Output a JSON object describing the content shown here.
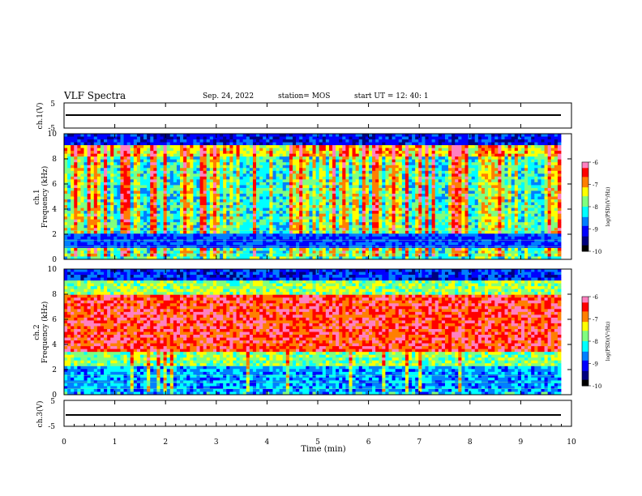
{
  "header": {
    "title": "VLF Spectra",
    "date": "Sep. 24, 2022",
    "station": "station= MOS",
    "start": "start  UT  =    12: 40: 1"
  },
  "chart_data": [
    {
      "type": "line",
      "panel": "ch1_waveform",
      "ylabel": "ch.1(V)",
      "ylim": [
        -5,
        5
      ],
      "yticks": [
        "5",
        "-5"
      ],
      "xlim": [
        0,
        10
      ],
      "values_approx": "flat trace near -0.3 V with sparse small spikes",
      "color": "#000000"
    },
    {
      "type": "heatmap",
      "panel": "ch1_spectrogram",
      "ylabel_line1": "ch.1",
      "ylabel_line2": "Frequency (kHz)",
      "ylim": [
        0,
        10
      ],
      "yticks": [
        "0",
        "2",
        "4",
        "6",
        "8",
        "10"
      ],
      "xlim": [
        0,
        10
      ],
      "colorbar": {
        "label": "log(PSD)(V²/Hz)",
        "range": [
          -10,
          -6
        ],
        "ticks": [
          "-6",
          "-7",
          "-8",
          "-9",
          "-10"
        ]
      },
      "description_values": {
        "dominant_band_khz": [
          0.3,
          9.0
        ],
        "bursty_vertical_structures": true
      }
    },
    {
      "type": "heatmap",
      "panel": "ch2_spectrogram",
      "ylabel_line1": "ch.2",
      "ylabel_line2": "Frequency (kHz)",
      "ylim": [
        0,
        10
      ],
      "yticks": [
        "0",
        "2",
        "4",
        "6",
        "8",
        "10"
      ],
      "xlim": [
        0,
        10
      ],
      "colorbar": {
        "label": "log(PSD)(V²/Hz)",
        "range": [
          -10,
          -6
        ],
        "ticks": [
          "-6",
          "-7",
          "-8",
          "-9",
          "-10"
        ]
      },
      "description_values": {
        "dominant_band_khz": [
          3.5,
          8.0
        ]
      }
    },
    {
      "type": "line",
      "panel": "ch3_waveform",
      "ylabel": "ch.3(V)",
      "ylim": [
        -5,
        5
      ],
      "yticks": [
        "5",
        "-5"
      ],
      "xlim": [
        0,
        10
      ],
      "values_approx": "flat trace near -1 V",
      "color": "#000000"
    }
  ],
  "xaxis": {
    "label": "Time (min)",
    "ticks": [
      "0",
      "1",
      "2",
      "3",
      "4",
      "5",
      "6",
      "7",
      "8",
      "9",
      "10"
    ],
    "range": [
      0,
      10
    ]
  },
  "colors": {
    "jet": [
      "#000000",
      "#00007f",
      "#0000ff",
      "#007fff",
      "#00ffff",
      "#7fff7f",
      "#ffff00",
      "#ff7f00",
      "#ff0000",
      "#ff80c0"
    ]
  }
}
